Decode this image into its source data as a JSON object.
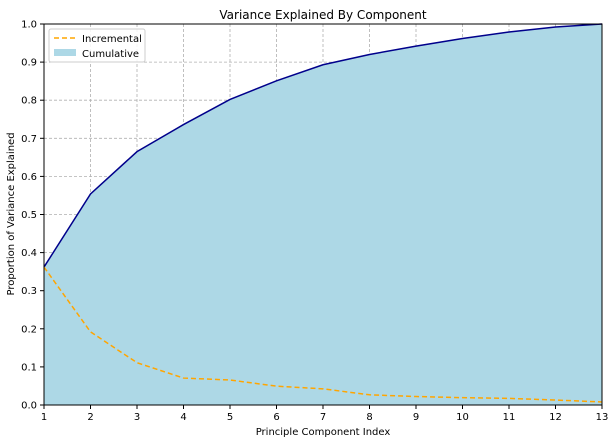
{
  "chart_data": {
    "type": "area",
    "title": "Variance Explained By Component",
    "xlabel": "Principle Component Index",
    "ylabel": "Proportion of Variance Explained",
    "xlim": [
      1,
      13
    ],
    "ylim": [
      0,
      1.0
    ],
    "grid": true,
    "legend_placement": "top-left",
    "x": [
      1,
      2,
      3,
      4,
      5,
      6,
      7,
      8,
      9,
      10,
      11,
      12,
      13
    ],
    "x_ticks": [
      "1",
      "2",
      "3",
      "4",
      "5",
      "6",
      "7",
      "8",
      "9",
      "10",
      "11",
      "12",
      "13"
    ],
    "y_ticks": [
      "0.0",
      "0.1",
      "0.2",
      "0.3",
      "0.4",
      "0.5",
      "0.6",
      "0.7",
      "0.8",
      "0.9",
      "1.0"
    ],
    "series": [
      {
        "name": "Incremental",
        "style": "dashed line",
        "color": "#ffa500",
        "values": [
          0.362,
          0.192,
          0.111,
          0.0707,
          0.0656,
          0.0494,
          0.0424,
          0.0268,
          0.0222,
          0.0193,
          0.0174,
          0.013,
          0.008
        ]
      },
      {
        "name": "Cumulative",
        "style": "filled area",
        "color": "#add8e6",
        "line_color": "#00008b",
        "values": [
          0.362,
          0.554,
          0.665,
          0.736,
          0.802,
          0.851,
          0.893,
          0.92,
          0.942,
          0.962,
          0.979,
          0.992,
          1.0
        ]
      }
    ]
  }
}
